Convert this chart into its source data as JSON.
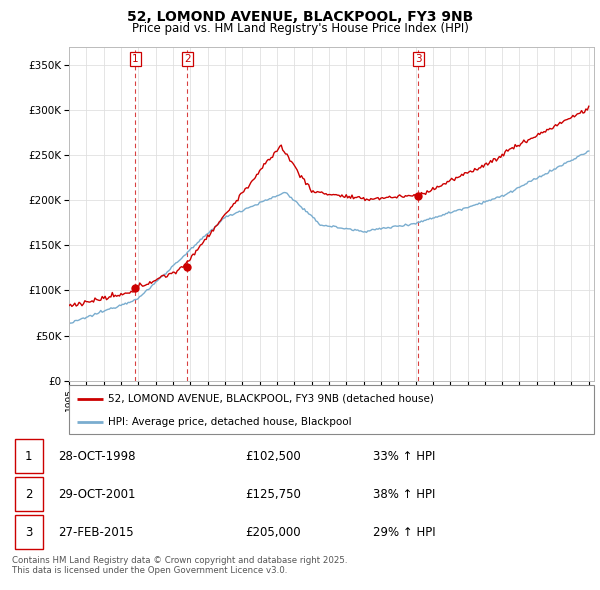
{
  "title": "52, LOMOND AVENUE, BLACKPOOL, FY3 9NB",
  "subtitle": "Price paid vs. HM Land Registry's House Price Index (HPI)",
  "ylim": [
    0,
    370000
  ],
  "yticks": [
    0,
    50000,
    100000,
    150000,
    200000,
    250000,
    300000,
    350000
  ],
  "ytick_labels": [
    "£0",
    "£50K",
    "£100K",
    "£150K",
    "£200K",
    "£250K",
    "£300K",
    "£350K"
  ],
  "purchase_years_float": [
    1998.83,
    2001.83,
    2015.17
  ],
  "purchase_prices": [
    102500,
    125750,
    205000
  ],
  "purchase_labels": [
    "1",
    "2",
    "3"
  ],
  "legend_red": "52, LOMOND AVENUE, BLACKPOOL, FY3 9NB (detached house)",
  "legend_blue": "HPI: Average price, detached house, Blackpool",
  "table_rows": [
    [
      "1",
      "28-OCT-1998",
      "£102,500",
      "33% ↑ HPI"
    ],
    [
      "2",
      "29-OCT-2001",
      "£125,750",
      "38% ↑ HPI"
    ],
    [
      "3",
      "27-FEB-2015",
      "£205,000",
      "29% ↑ HPI"
    ]
  ],
  "footer": "Contains HM Land Registry data © Crown copyright and database right 2025.\nThis data is licensed under the Open Government Licence v3.0.",
  "red_color": "#cc0000",
  "blue_color": "#7aadcf",
  "grid_color": "#e0e0e0"
}
